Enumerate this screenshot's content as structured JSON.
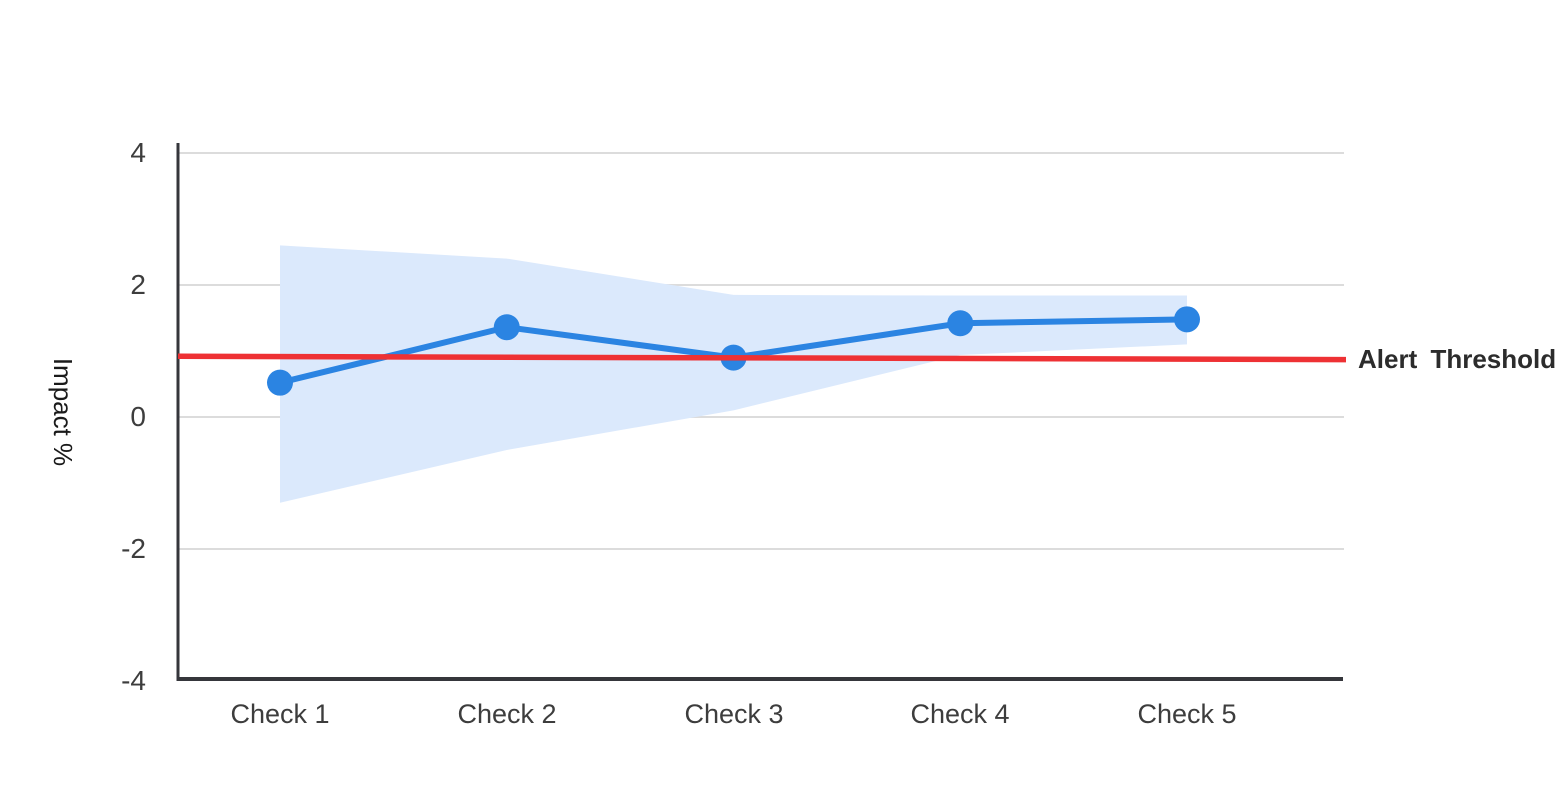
{
  "chart_data": {
    "type": "line",
    "title": "",
    "ylabel": "Impact %",
    "xlabel": "",
    "categories": [
      "Check 1",
      "Check 2",
      "Check 3",
      "Check 4",
      "Check 5"
    ],
    "series": [
      {
        "name": "impact",
        "values": [
          0.52,
          1.36,
          0.9,
          1.42,
          1.48
        ]
      }
    ],
    "band": {
      "name": "confidence-band",
      "upper": [
        2.6,
        2.4,
        1.85,
        1.84,
        1.84
      ],
      "lower": [
        -1.3,
        -0.5,
        0.1,
        0.94,
        1.1
      ]
    },
    "threshold": {
      "label": "Alert Threshold",
      "start": 0.92,
      "end": 0.87
    },
    "ylim": [
      -4,
      4
    ],
    "yticks": [
      4,
      2,
      0,
      -2,
      -4
    ],
    "ytick_labels": [
      "4",
      "2",
      "0",
      "-2",
      "-4"
    ],
    "grid": "horizontal",
    "legend": "none",
    "colors": {
      "line": "#2b84e2",
      "marker": "#2b84e2",
      "band": "#dbe9fc",
      "threshold": "#ee3134",
      "axis": "#35363b",
      "grid": "#dcdcdc",
      "tick_text": "#3d3d3d",
      "label_text": "#1a1a1a",
      "threshold_text": "#2c2c2c",
      "background": "#ffffff"
    }
  }
}
